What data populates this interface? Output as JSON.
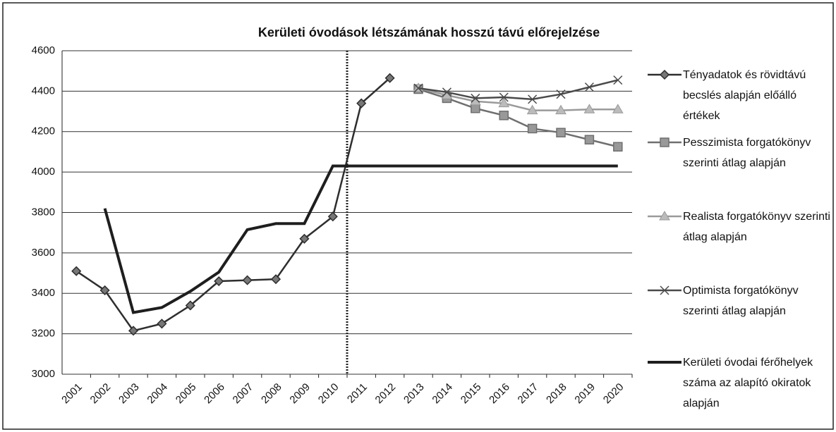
{
  "chart_data": {
    "type": "line",
    "title": "Kerületi óvodások létszámának hosszú távú előrejelzése",
    "categories": [
      "2001",
      "2002",
      "2003",
      "2004",
      "2005",
      "2006",
      "2007",
      "2008",
      "2009",
      "2010",
      "2011",
      "2012",
      "2013",
      "2014",
      "2015",
      "2016",
      "2017",
      "2018",
      "2019",
      "2020"
    ],
    "series": [
      {
        "name": "Tényadatok és rövidtávú becslés alapján előálló értékek",
        "color": "#2e2e2e",
        "marker": "diamond",
        "values": [
          3510,
          3415,
          3215,
          3250,
          3340,
          3460,
          3465,
          3470,
          3670,
          3780,
          4340,
          4465,
          null,
          null,
          null,
          null,
          null,
          null,
          null,
          null
        ]
      },
      {
        "name": "Pesszimista forgatókönyv szerinti átlag alapján",
        "color": "#6f6f6f",
        "marker": "square",
        "values": [
          null,
          null,
          null,
          null,
          null,
          null,
          null,
          null,
          null,
          null,
          null,
          null,
          4410,
          4365,
          4315,
          4280,
          4215,
          4195,
          4160,
          4125
        ]
      },
      {
        "name": "Realista forgatókönyv szerinti átlag alapján",
        "color": "#9a9a9a",
        "marker": "triangle",
        "values": [
          null,
          null,
          null,
          null,
          null,
          null,
          null,
          null,
          null,
          null,
          null,
          null,
          4415,
          4380,
          4350,
          4340,
          4305,
          4305,
          4310,
          4310
        ]
      },
      {
        "name": "Optimista forgatókönyv szerinti átlag alapján",
        "color": "#4a4a4a",
        "marker": "x",
        "values": [
          null,
          null,
          null,
          null,
          null,
          null,
          null,
          null,
          null,
          null,
          null,
          null,
          4415,
          4395,
          4365,
          4370,
          4360,
          4385,
          4420,
          4455
        ]
      },
      {
        "name": "Kerületi óvodai férőhelyek száma az alapító okiratok alapján",
        "color": "#1e1e1e",
        "marker": "none",
        "values": [
          null,
          3820,
          3305,
          3330,
          3410,
          3505,
          3715,
          3745,
          3745,
          4030,
          4030,
          4030,
          4030,
          4030,
          4030,
          4030,
          4030,
          4030,
          4030,
          4030
        ]
      }
    ],
    "ylim": [
      3000,
      4600
    ],
    "yticks": [
      3000,
      3200,
      3400,
      3600,
      3800,
      4000,
      4200,
      4400,
      4600
    ],
    "grid": true,
    "legend": "right"
  }
}
